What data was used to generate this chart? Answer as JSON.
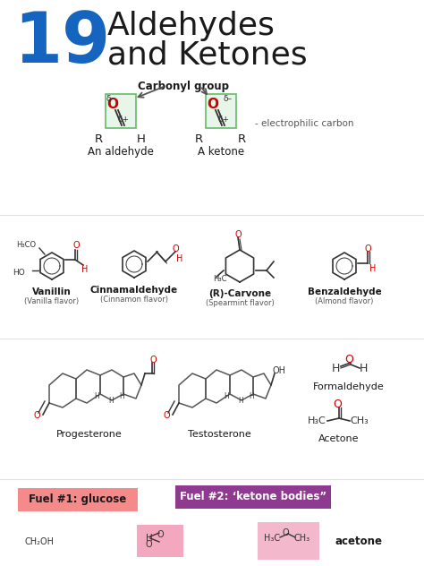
{
  "title_number": "19",
  "title_number_color": "#1565c0",
  "title_text_line1": "Aldehydes",
  "title_text_line2": "and Ketones",
  "bg_color": "#ffffff",
  "carbonyl_label": "Carbonyl group",
  "aldehyde_label": "An aldehyde",
  "ketone_label": "A ketone",
  "electrophilic_label": "- electrophilic carbon",
  "green_fill": "#e8f5e9",
  "green_border": "#66bb6a",
  "red_color": "#cc0000",
  "fuel1_text": "Fuel #1: glucose",
  "fuel1_bg": "#f48a8a",
  "fuel2_text": "Fuel #2: ‘ketone bodies”",
  "fuel2_bg": "#8e3a8e",
  "fuel2_text_color": "#ffffff",
  "acetone_label": "acetone"
}
